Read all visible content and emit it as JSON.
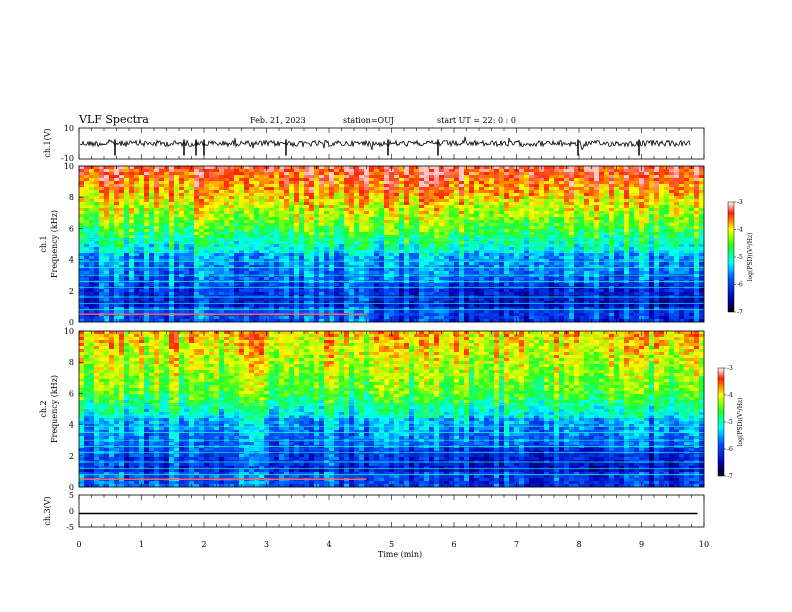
{
  "header": {
    "title": "VLF Spectra",
    "date": "Feb. 21, 2023",
    "station": "station=OUJ",
    "start": "start  UT =   22: 0  : 0"
  },
  "chart_data": [
    {
      "type": "line",
      "name": "ch1-waveform",
      "ylabel": "ch.1(V)",
      "ylim": [
        -10,
        10
      ],
      "yticks": [
        "10",
        "-10"
      ],
      "xlim": [
        0,
        10
      ]
    },
    {
      "type": "heatmap",
      "name": "ch1-spectrogram",
      "ylabel": "ch.1\nFrequency (kHz)",
      "ylim": [
        0,
        10
      ],
      "yticks": [
        "0",
        "2",
        "4",
        "6",
        "8",
        "10"
      ],
      "xlim": [
        0,
        10
      ],
      "colorbar": {
        "label": "log(PSD)(V²/Hz)",
        "range": [
          -7,
          -3
        ],
        "ticks": [
          "-3",
          "-4",
          "-5",
          "-6",
          "-7"
        ]
      }
    },
    {
      "type": "heatmap",
      "name": "ch2-spectrogram",
      "ylabel": "ch.2\nFrequency (kHz)",
      "ylim": [
        0,
        10
      ],
      "yticks": [
        "0",
        "2",
        "4",
        "6",
        "8",
        "10"
      ],
      "xlim": [
        0,
        10
      ],
      "colorbar": {
        "label": "log(PSD)(V²/Hz)",
        "range": [
          -7,
          -3
        ],
        "ticks": [
          "-3",
          "-4",
          "-5",
          "-6",
          "-7"
        ]
      }
    },
    {
      "type": "line",
      "name": "ch3-waveform",
      "ylabel": "ch.3(V)",
      "ylim": [
        -5,
        5
      ],
      "yticks": [
        "5",
        "0",
        "-5"
      ],
      "xlim": [
        0,
        10
      ],
      "x": [
        0,
        9.8
      ],
      "y": [
        -0.8,
        -0.8
      ]
    }
  ],
  "xaxis": {
    "label": "Time (min)",
    "ticks": [
      "0",
      "1",
      "2",
      "3",
      "4",
      "5",
      "6",
      "7",
      "8",
      "9",
      "10"
    ]
  },
  "colors": {
    "waveform": "#000000",
    "frame": "#000000"
  }
}
